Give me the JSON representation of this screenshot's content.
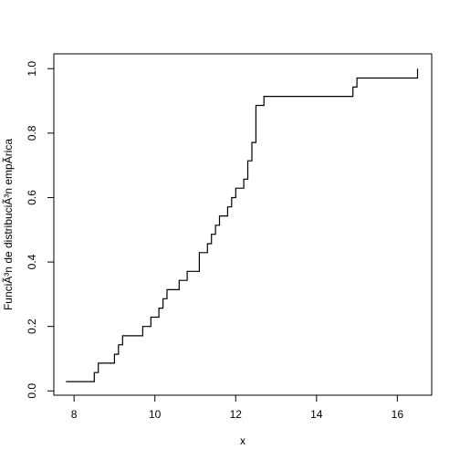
{
  "chart_data": {
    "type": "line",
    "step": true,
    "title": "",
    "xlabel": "x",
    "ylabel": "FunciÃ³n de distribuciÃ³n empÃ­rica",
    "xlim": [
      7.5,
      16.85
    ],
    "ylim": [
      -0.0133,
      1.046
    ],
    "xticks": [
      8,
      10,
      12,
      14,
      16
    ],
    "xtick_labels": [
      "8",
      "10",
      "12",
      "14",
      "16"
    ],
    "yticks": [
      0.0,
      0.2,
      0.4,
      0.6,
      0.8,
      1.0
    ],
    "ytick_labels": [
      "0.0",
      "0.2",
      "0.4",
      "0.6",
      "0.8",
      "1.0"
    ],
    "grid": false,
    "series": [
      {
        "x": [
          7.8,
          8.5,
          8.6,
          9.0,
          9.1,
          9.2,
          9.3,
          9.7,
          9.9,
          10.1,
          10.2,
          10.3,
          10.6,
          10.8,
          11.1,
          11.3,
          11.4,
          11.5,
          11.6,
          11.8,
          11.9,
          12.0,
          12.2,
          12.3,
          12.4,
          12.5,
          12.7,
          14.9,
          15.0,
          16.5
        ],
        "y": [
          0.029,
          0.057,
          0.086,
          0.114,
          0.143,
          0.171,
          0.171,
          0.2,
          0.229,
          0.257,
          0.286,
          0.314,
          0.343,
          0.371,
          0.429,
          0.457,
          0.486,
          0.514,
          0.543,
          0.571,
          0.6,
          0.629,
          0.657,
          0.714,
          0.771,
          0.886,
          0.914,
          0.943,
          0.971,
          1.0
        ]
      }
    ]
  }
}
